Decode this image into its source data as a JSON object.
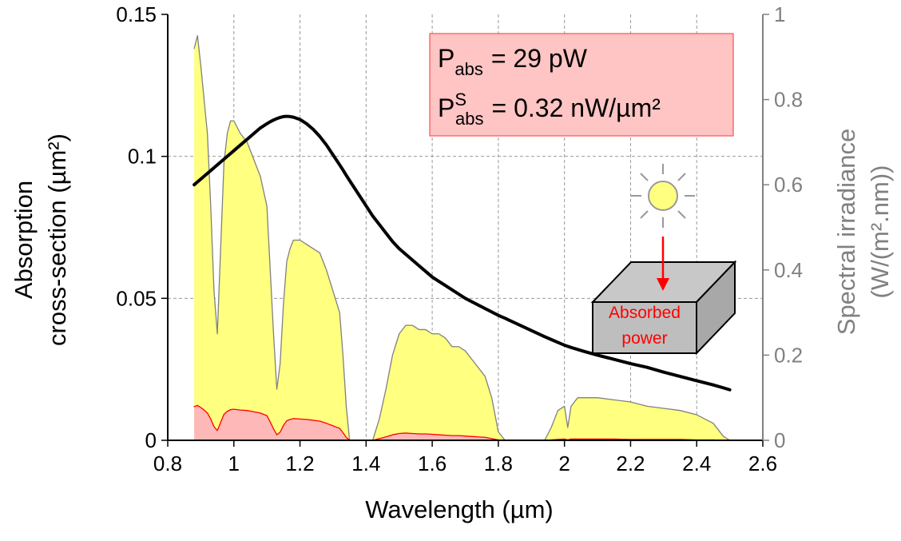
{
  "chart_data": {
    "type": "line",
    "x_label": "Wavelength (µm)",
    "y_label": [
      "Absorption",
      "cross-section (µm²)"
    ],
    "y2_label": [
      "Spectral irradiance",
      "(W/(m².nm))"
    ],
    "xlim": [
      0.8,
      2.6
    ],
    "xticks": [
      0.8,
      1,
      1.2,
      1.4,
      1.6,
      1.8,
      2,
      2.2,
      2.4,
      2.6
    ],
    "ylim": [
      0,
      0.15
    ],
    "yticks": [
      0,
      0.05,
      0.1,
      0.15
    ],
    "y2lim": [
      0,
      1
    ],
    "y2ticks": [
      0,
      0.2,
      0.4,
      0.6,
      0.8,
      1
    ],
    "grid": true,
    "axis_color_y2": "#808080",
    "x": [
      0.88,
      0.89,
      0.9,
      0.91,
      0.92,
      0.93,
      0.94,
      0.95,
      0.96,
      0.97,
      0.98,
      0.99,
      1.0,
      1.02,
      1.04,
      1.06,
      1.08,
      1.1,
      1.11,
      1.12,
      1.13,
      1.14,
      1.15,
      1.16,
      1.17,
      1.18,
      1.2,
      1.22,
      1.24,
      1.26,
      1.28,
      1.3,
      1.32,
      1.33,
      1.34,
      1.35,
      1.42,
      1.44,
      1.46,
      1.48,
      1.5,
      1.52,
      1.54,
      1.56,
      1.58,
      1.6,
      1.62,
      1.64,
      1.66,
      1.68,
      1.7,
      1.72,
      1.74,
      1.76,
      1.78,
      1.8,
      1.82,
      1.94,
      1.96,
      1.98,
      2.0,
      2.01,
      2.02,
      2.04,
      2.06,
      2.1,
      2.15,
      2.2,
      2.25,
      2.3,
      2.35,
      2.4,
      2.45,
      2.48,
      2.5
    ],
    "series": [
      {
        "color": "#808080",
        "fill": "#ffff80",
        "axis": "y2",
        "values": [
          0.92,
          0.95,
          0.88,
          0.8,
          0.72,
          0.55,
          0.35,
          0.25,
          0.45,
          0.65,
          0.72,
          0.75,
          0.75,
          0.72,
          0.7,
          0.66,
          0.62,
          0.55,
          0.4,
          0.25,
          0.12,
          0.18,
          0.32,
          0.42,
          0.45,
          0.47,
          0.47,
          0.46,
          0.45,
          0.44,
          0.4,
          0.35,
          0.3,
          0.2,
          0.08,
          0,
          0,
          0.05,
          0.12,
          0.2,
          0.25,
          0.27,
          0.27,
          0.26,
          0.26,
          0.25,
          0.25,
          0.24,
          0.22,
          0.22,
          0.21,
          0.19,
          0.17,
          0.15,
          0.1,
          0.02,
          0,
          0,
          0.03,
          0.07,
          0.08,
          0.03,
          0.08,
          0.1,
          0.1,
          0.1,
          0.095,
          0.09,
          0.08,
          0.075,
          0.07,
          0.06,
          0.04,
          0.01,
          0
        ]
      },
      {
        "color": "#ff0000",
        "fill": "#ffb8b8",
        "axis": "y2",
        "values": [
          0.079,
          0.082,
          0.077,
          0.071,
          0.064,
          0.05,
          0.032,
          0.023,
          0.042,
          0.061,
          0.068,
          0.072,
          0.073,
          0.071,
          0.07,
          0.067,
          0.064,
          0.058,
          0.043,
          0.027,
          0.013,
          0.019,
          0.035,
          0.046,
          0.049,
          0.051,
          0.05,
          0.049,
          0.047,
          0.045,
          0.04,
          0.034,
          0.028,
          0.018,
          0.007,
          0,
          0,
          0.004,
          0.008,
          0.013,
          0.016,
          0.017,
          0.016,
          0.015,
          0.015,
          0.014,
          0.013,
          0.012,
          0.011,
          0.011,
          0.01,
          0.009,
          0.008,
          0.007,
          0.004,
          0.001,
          0,
          0,
          0.001,
          0.002,
          0.003,
          0.001,
          0.003,
          0.003,
          0.003,
          0.003,
          0.003,
          0.002,
          0.002,
          0.002,
          0.002,
          0.001,
          0.001,
          0,
          0
        ]
      },
      {
        "color": "#000000",
        "values": [
          0.09,
          0.091,
          0.092,
          0.093,
          0.094,
          0.095,
          0.096,
          0.097,
          0.098,
          0.099,
          0.1,
          0.101,
          0.102,
          0.104,
          0.106,
          0.108,
          0.11,
          0.1115,
          0.1122,
          0.1128,
          0.1133,
          0.1137,
          0.114,
          0.1141,
          0.114,
          0.1138,
          0.113,
          0.1115,
          0.1095,
          0.107,
          0.104,
          0.1005,
          0.097,
          0.0952,
          0.0933,
          0.0915,
          0.079,
          0.076,
          0.073,
          0.07,
          0.0675,
          0.0655,
          0.0635,
          0.0615,
          0.0595,
          0.0575,
          0.056,
          0.0545,
          0.053,
          0.0515,
          0.05,
          0.0488,
          0.0476,
          0.0464,
          0.0452,
          0.044,
          0.043,
          0.0365,
          0.0355,
          0.0345,
          0.0335,
          0.0331,
          0.0327,
          0.032,
          0.0313,
          0.03,
          0.0285,
          0.027,
          0.0257,
          0.024,
          0.0225,
          0.021,
          0.0195,
          0.0185,
          0.0178
        ]
      }
    ],
    "annotations": [
      {
        "symbol": "P",
        "sub": "abs",
        "text": "= 29 pW"
      },
      {
        "symbol": "P",
        "sup": "S",
        "sub": "abs",
        "text": "= 0.32 nW/µm²"
      }
    ],
    "inset_label": [
      "Absorbed",
      "power"
    ]
  }
}
